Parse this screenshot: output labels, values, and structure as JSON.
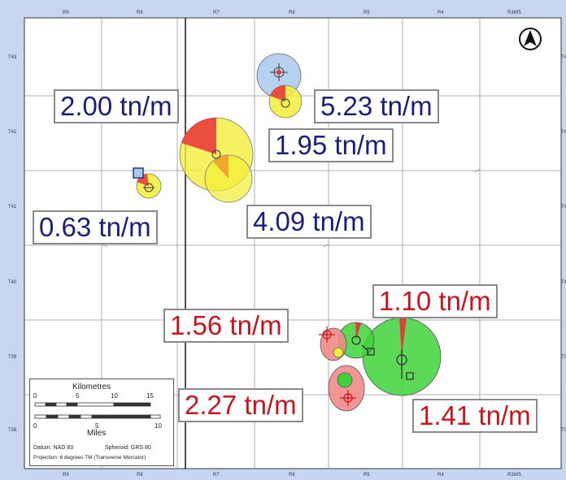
{
  "ranges": [
    "R9",
    "R8",
    "R7",
    "R6",
    "R5",
    "R4",
    "R3W5"
  ],
  "townships": [
    "T43",
    "T42",
    "T41",
    "T40",
    "T39",
    "T38"
  ],
  "labels": {
    "l_200": "2.00 tn/m",
    "l_523": "5.23 tn/m",
    "l_195": "1.95 tn/m",
    "l_063": "0.63 tn/m",
    "l_409": "4.09 tn/m",
    "l_110": "1.10 tn/m",
    "l_156": "1.56 tn/m",
    "l_227": "2.27 tn/m",
    "l_141": "1.41 tn/m"
  },
  "scale": {
    "km_title": "Kilometres",
    "km_ticks": [
      "0",
      "5",
      "10",
      "15"
    ],
    "mi_title": "Miles",
    "mi_ticks": [
      "0",
      "5",
      "10"
    ],
    "datum": "Datum: NAD 83",
    "spheroid": "Spheroid: GRS 80",
    "projection": "Projection: 6 degrees TM (Transverse Mercator)"
  },
  "colors": {
    "background": "#c7d6ee",
    "map": "#ffffff",
    "grid": "#9a9a9a",
    "blue_text": "#1c1f7a",
    "red_text": "#c8141c",
    "yellow": "#f2ee3a",
    "red": "#e8323c",
    "green": "#3ed23a",
    "light_blue": "#a9c9ec",
    "pink": "#f08a8a",
    "orange": "#ee9a2a"
  },
  "icons": [
    "north-arrow-icon",
    "well-symbol-icon"
  ]
}
